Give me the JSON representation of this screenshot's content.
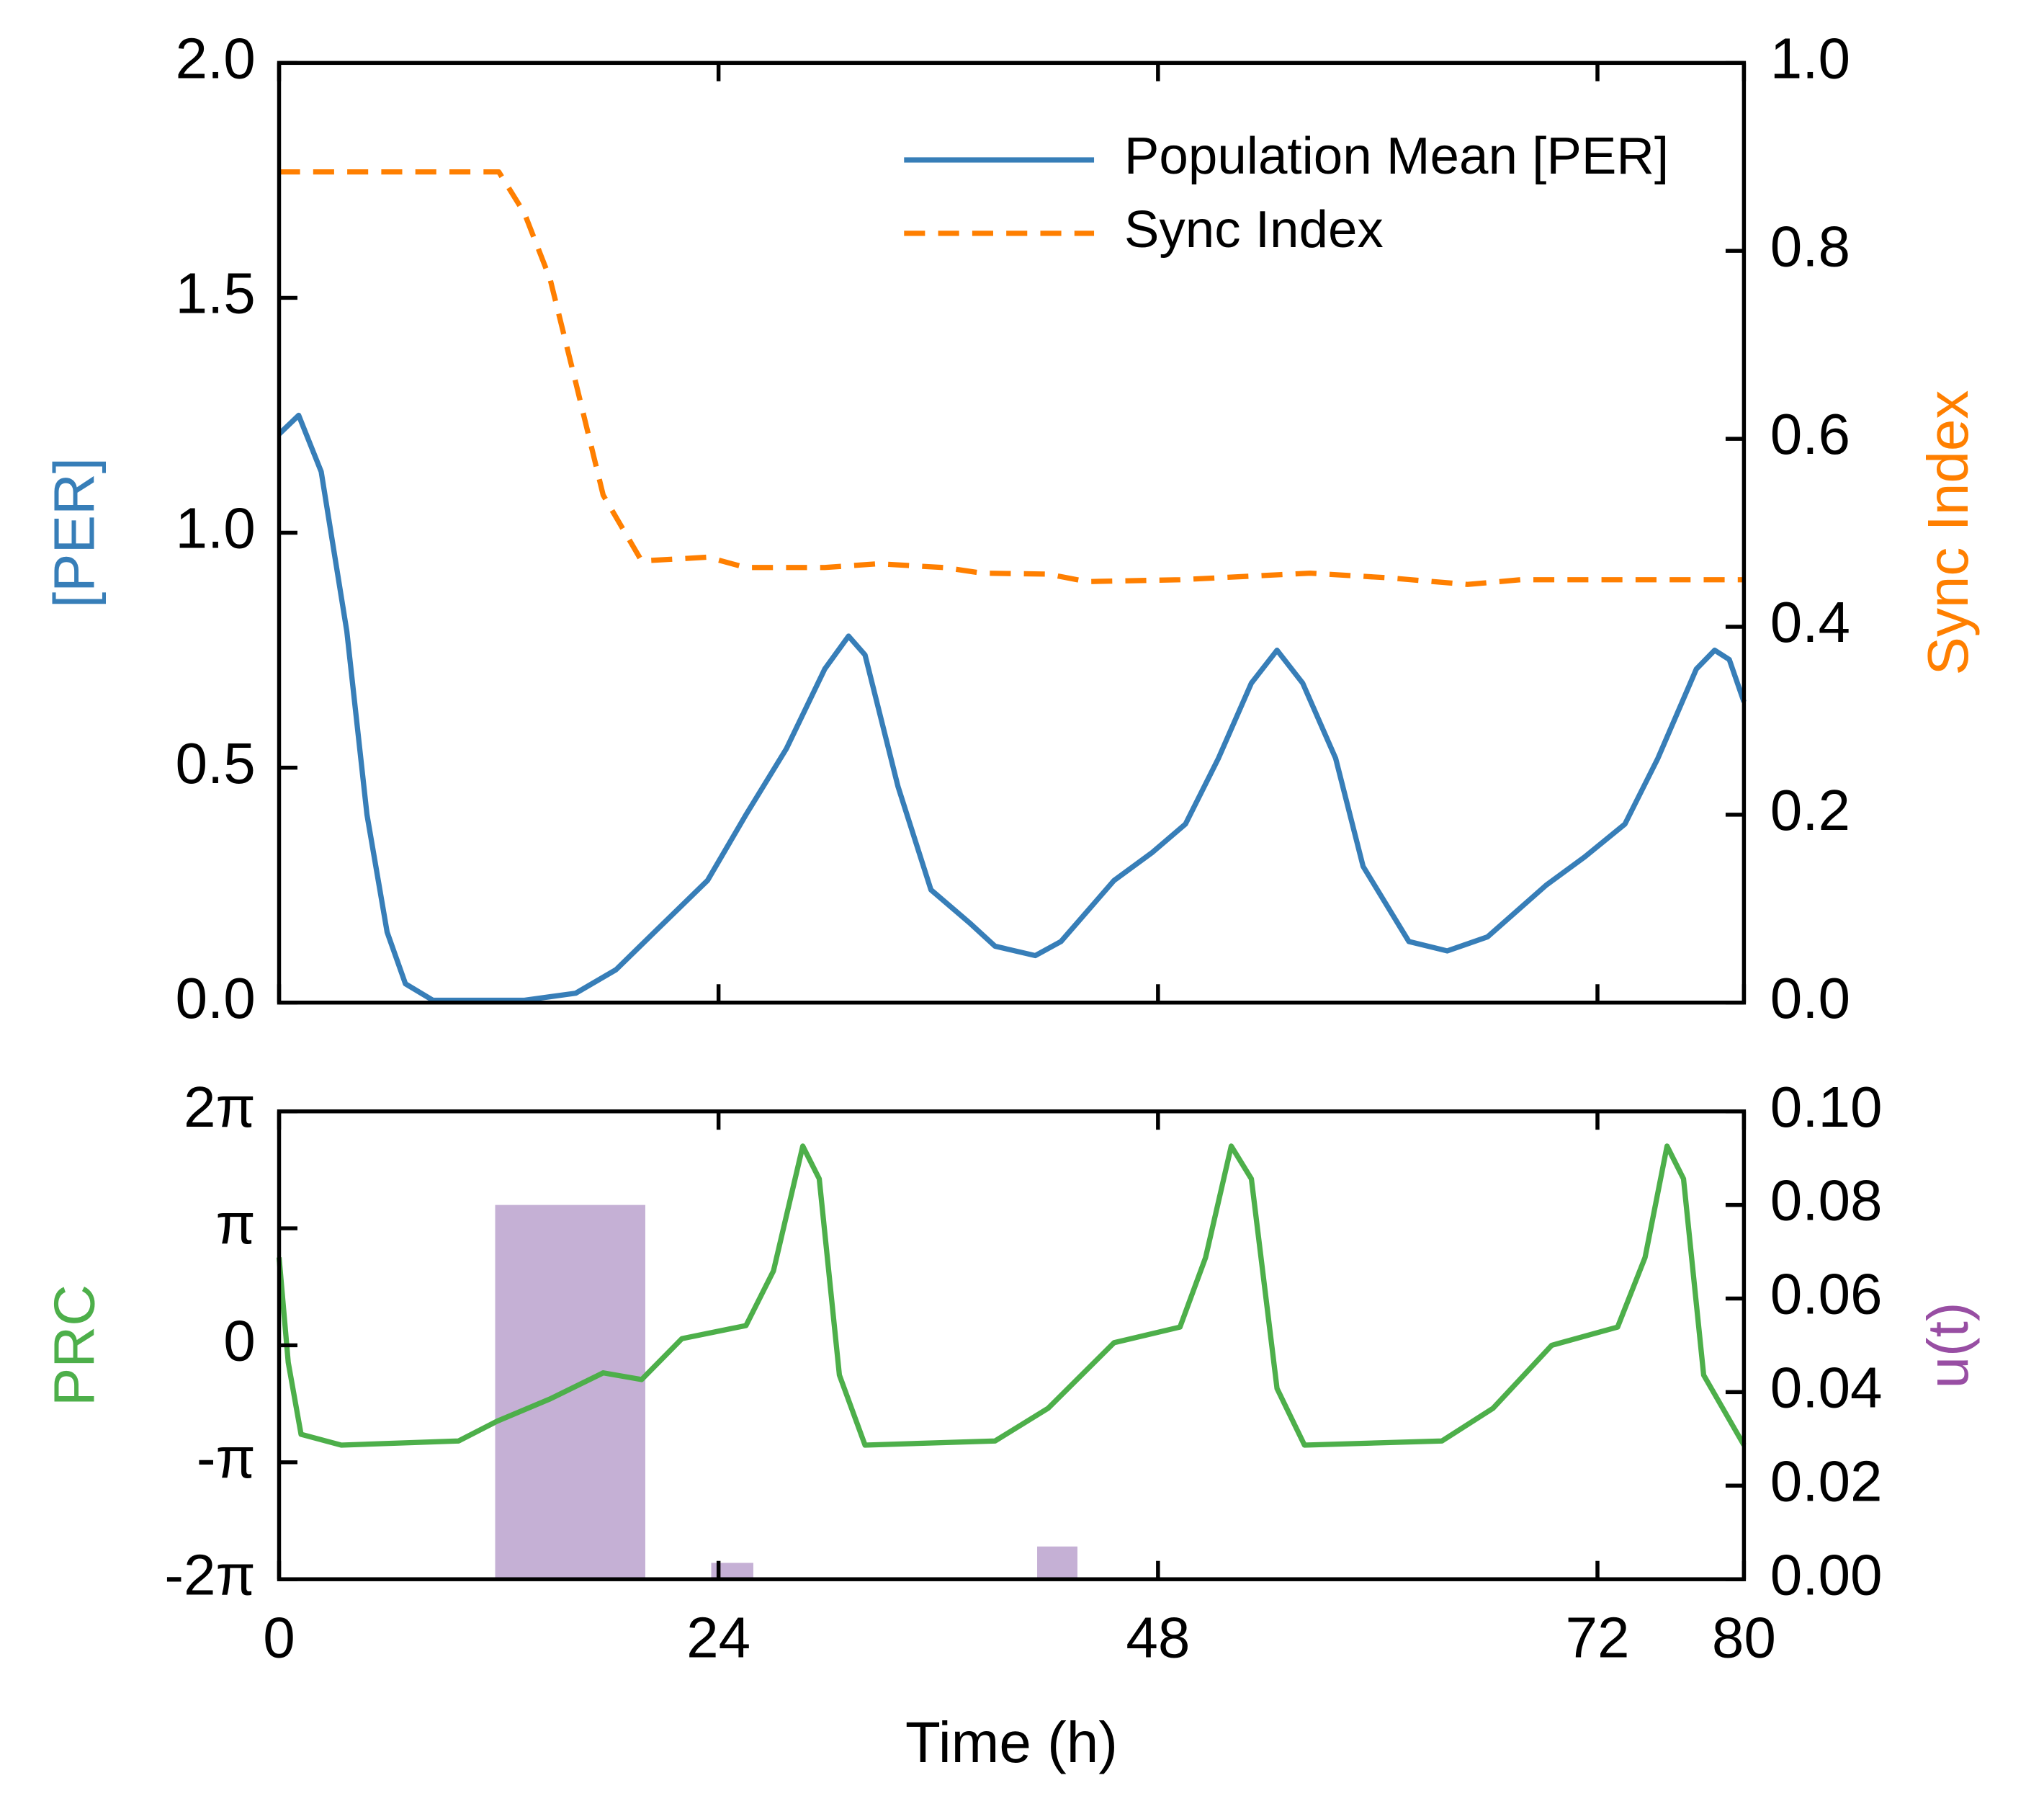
{
  "chart_data": [
    {
      "type": "line",
      "ylabel": "[PER]",
      "ylabel_color": "#377eb8",
      "y2label": "Sync Index",
      "y2label_color": "#ff7f00",
      "xlim": [
        0,
        80
      ],
      "ylim": [
        0,
        2
      ],
      "yticks": [
        {
          "value": 0,
          "label": "0.0"
        },
        {
          "value": 0.5,
          "label": "0.5"
        },
        {
          "value": 1,
          "label": "1.0"
        },
        {
          "value": 1.5,
          "label": "1.5"
        },
        {
          "value": 2,
          "label": "2.0"
        }
      ],
      "y2lim": [
        0,
        1
      ],
      "y2ticks": [
        {
          "value": 0,
          "label": "0.0"
        },
        {
          "value": 0.2,
          "label": "0.2"
        },
        {
          "value": 0.4,
          "label": "0.4"
        },
        {
          "value": 0.6,
          "label": "0.6"
        },
        {
          "value": 0.8,
          "label": "0.8"
        },
        {
          "value": 1,
          "label": "1.0"
        }
      ],
      "legend": "upper right",
      "series": [
        {
          "name": "Population Mean [PER]",
          "color": "#377eb8",
          "linestyle": "solid",
          "x": [
            0,
            1.07,
            2.3,
            3.7,
            4.8,
            5.9,
            6.9,
            8.4,
            13.4,
            16.2,
            18.4,
            20.5,
            23.4,
            25.5,
            27.7,
            29.8,
            31.1,
            32,
            33.8,
            35.6,
            37.7,
            39.1,
            41.3,
            42.7,
            45.6,
            47.7,
            49.5,
            51.3,
            53.1,
            54.5,
            55.9,
            57.7,
            59.2,
            61.7,
            63.8,
            66,
            69.2,
            71.3,
            73.5,
            75.3,
            77.4,
            78.4,
            79.2,
            80
          ],
          "values": [
            1.21,
            1.25,
            1.13,
            0.79,
            0.4,
            0.15,
            0.04,
            0.005,
            0.005,
            0.02,
            0.07,
            0.15,
            0.26,
            0.4,
            0.54,
            0.71,
            0.78,
            0.74,
            0.46,
            0.24,
            0.17,
            0.12,
            0.1,
            0.13,
            0.26,
            0.32,
            0.38,
            0.52,
            0.68,
            0.75,
            0.68,
            0.52,
            0.29,
            0.13,
            0.11,
            0.14,
            0.25,
            0.31,
            0.38,
            0.52,
            0.71,
            0.75,
            0.73,
            0.64
          ]
        },
        {
          "name": "Sync Index",
          "color": "#ff7f00",
          "linestyle": "dashed",
          "axis": "y2",
          "x": [
            0,
            12,
            13.4,
            14.8,
            16.2,
            17.7,
            19.8,
            23.4,
            25.5,
            29.8,
            32.7,
            36.3,
            38.4,
            42,
            44.1,
            49.2,
            56.3,
            60.6,
            64.9,
            67.8,
            80
          ],
          "values": [
            0.884,
            0.884,
            0.84,
            0.77,
            0.66,
            0.54,
            0.47,
            0.474,
            0.463,
            0.463,
            0.467,
            0.463,
            0.457,
            0.456,
            0.448,
            0.45,
            0.457,
            0.452,
            0.445,
            0.45,
            0.45
          ]
        }
      ]
    },
    {
      "type": "line",
      "xlabel": "Time (h)",
      "ylabel": "PRC",
      "ylabel_color": "#4daf4a",
      "y2label": "u(t)",
      "y2label_color": "#984ea3",
      "xlim": [
        0,
        80
      ],
      "xticks": [
        0,
        24,
        48,
        72,
        80
      ],
      "ylim": [
        -6.2832,
        6.2832
      ],
      "yticks": [
        {
          "value": -6.2832,
          "label": "-2π"
        },
        {
          "value": -3.1416,
          "label": "-π"
        },
        0,
        {
          "value": 3.1416,
          "label": "π"
        },
        {
          "value": 6.2832,
          "label": "2π"
        }
      ],
      "y2lim": [
        0,
        0.1
      ],
      "y2ticks": [
        {
          "value": 0,
          "label": "0.00"
        },
        {
          "value": 0.02,
          "label": "0.02"
        },
        {
          "value": 0.04,
          "label": "0.04"
        },
        {
          "value": 0.06,
          "label": "0.06"
        },
        {
          "value": 0.08,
          "label": "0.08"
        },
        {
          "value": 0.1,
          "label": "0.10"
        }
      ],
      "series": [
        {
          "type": "bar",
          "color": "#c5b0d5",
          "axis": "y2",
          "intervals": [
            [
              11.8,
              20
            ],
            [
              23.6,
              25.9
            ],
            [
              41.4,
              43.6
            ]
          ],
          "values": [
            0.08,
            0.0035,
            0.007
          ]
        },
        {
          "color": "#4daf4a",
          "linestyle": "solid",
          "x": [
            0,
            0.5,
            1.2,
            3.4,
            9.8,
            11.9,
            14.8,
            17.7,
            19.8,
            22,
            25.5,
            27,
            28.6,
            29.5,
            30.6,
            32,
            39.1,
            42,
            45.6,
            49.2,
            50.6,
            52,
            53.1,
            54.5,
            56,
            63.5,
            66.3,
            69.5,
            73.1,
            74.6,
            75.8,
            76.7,
            77.8,
            80
          ],
          "values": [
            2.36,
            -0.46,
            -2.39,
            -2.68,
            -2.57,
            -2.04,
            -1.44,
            -0.74,
            -0.92,
            0.18,
            0.53,
            2.0,
            5.35,
            4.47,
            -0.8,
            -2.68,
            -2.57,
            -1.69,
            0.07,
            0.49,
            2.36,
            5.35,
            4.47,
            -1.16,
            -2.68,
            -2.57,
            -1.69,
            0,
            0.49,
            2.36,
            5.35,
            4.47,
            -0.8,
            -2.68
          ]
        }
      ]
    }
  ]
}
